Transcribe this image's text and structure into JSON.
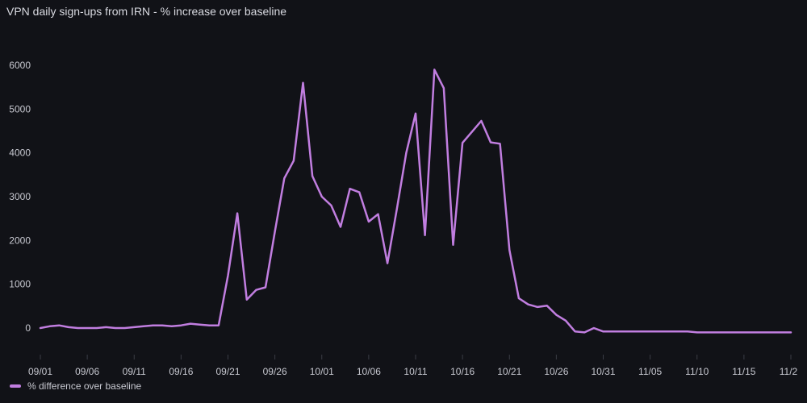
{
  "panel": {
    "title": "VPN daily sign-ups from IRN - % increase over baseline"
  },
  "colors": {
    "background": "#111217",
    "line": "#c17ee0",
    "grid": "#24262e"
  },
  "chart_data": {
    "type": "line",
    "title": "VPN daily sign-ups from IRN - % increase over baseline",
    "x_ticks": [
      "09/01",
      "09/06",
      "09/11",
      "09/16",
      "09/21",
      "09/26",
      "10/01",
      "10/06",
      "10/11",
      "10/16",
      "10/21",
      "10/26",
      "10/31",
      "11/05",
      "11/10",
      "11/15",
      "11/2"
    ],
    "y_ticks": [
      0,
      1000,
      2000,
      3000,
      4000,
      5000,
      6000
    ],
    "ylim": [
      -600,
      6500
    ],
    "x_start": "2022-09-01",
    "x_end": "2022-11-20",
    "grid": false,
    "legend_position": "bottom-left",
    "series": [
      {
        "name": "% difference over baseline",
        "values": [
          0,
          40,
          60,
          20,
          0,
          0,
          0,
          20,
          0,
          0,
          20,
          40,
          60,
          60,
          40,
          60,
          100,
          80,
          60,
          60,
          1200,
          2620,
          650,
          870,
          930,
          2200,
          3420,
          3820,
          5600,
          3470,
          3000,
          2800,
          2310,
          3180,
          3100,
          2430,
          2600,
          1480,
          2720,
          4000,
          4900,
          2120,
          5900,
          5480,
          1900,
          4230,
          4480,
          4730,
          4240,
          4210,
          1780,
          680,
          540,
          480,
          510,
          300,
          170,
          -80,
          -100,
          0,
          -80,
          -80,
          -80,
          -80,
          -80,
          -80,
          -80,
          -80,
          -80,
          -80,
          -100,
          -100,
          -100,
          -100,
          -100,
          -100,
          -100,
          -100,
          -100,
          -100,
          -100
        ]
      }
    ]
  },
  "legend": {
    "label": "% difference over baseline"
  }
}
